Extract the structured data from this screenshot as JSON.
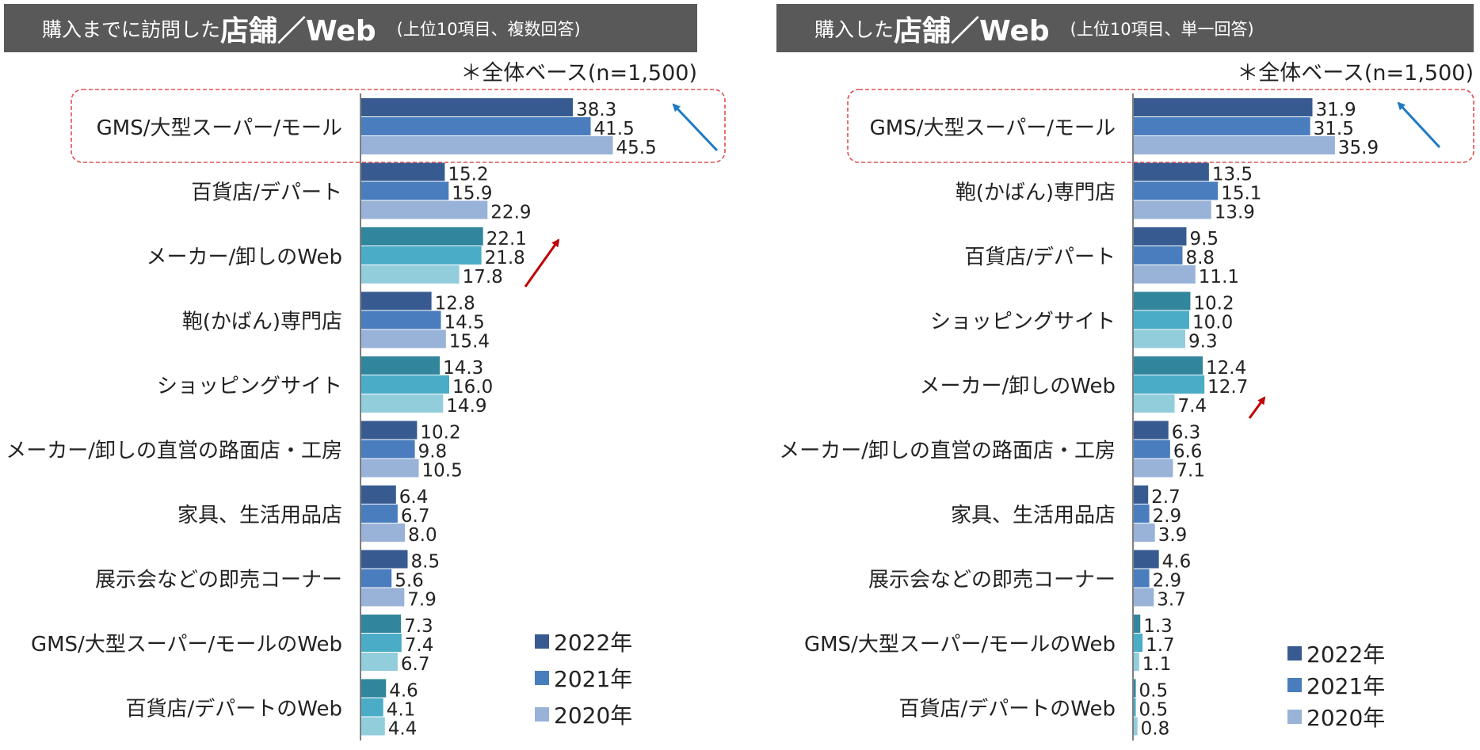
{
  "colors": {
    "title_bg": "#595959",
    "store_2022": "#375b91",
    "store_2021": "#4a7dbd",
    "store_2020": "#98b2d8",
    "web_2022": "#31859c",
    "web_2021": "#4aacc6",
    "web_2020": "#92cddc",
    "highlight_box": "#e05050",
    "arrow_up_left": "#1f7ac4",
    "arrow_up_right": "#c00000"
  },
  "left": {
    "title_pre": "購入までに訪問した",
    "title_em": "店舗／Web",
    "title_note": "(上位10項目、複数回答)",
    "base_note": "＊全体ベース(n=1,500)",
    "legend": [
      "2022年",
      "2021年",
      "2020年"
    ]
  },
  "right": {
    "title_pre": "購入した",
    "title_em": "店舗／Web",
    "title_note": "(上位10項目、単一回答)",
    "base_note": "＊全体ベース(n=1,500)",
    "legend": [
      "2022年",
      "2021年",
      "2020年"
    ]
  },
  "chart_data": [
    {
      "type": "bar",
      "orientation": "horizontal",
      "series_names": [
        "2022年",
        "2021年",
        "2020年"
      ],
      "categories": [
        {
          "label": "GMS/大型スーパー/モール",
          "kind": "store",
          "values": [
            38.3,
            41.5,
            45.5
          ],
          "values_text": [
            "38.3",
            "41.5",
            "45.5"
          ]
        },
        {
          "label": "百貨店/デパート",
          "kind": "store",
          "values": [
            15.2,
            15.9,
            22.9
          ],
          "values_text": [
            "15.2",
            "15.9",
            "22.9"
          ]
        },
        {
          "label": "メーカー/卸しのWeb",
          "kind": "web",
          "values": [
            22.1,
            21.8,
            17.8
          ],
          "values_text": [
            "22.1",
            "21.8",
            "17.8"
          ]
        },
        {
          "label": "鞄(かばん)専門店",
          "kind": "store",
          "values": [
            12.8,
            14.5,
            15.4
          ],
          "values_text": [
            "12.8",
            "14.5",
            "15.4"
          ]
        },
        {
          "label": "ショッピングサイト",
          "kind": "web",
          "values": [
            14.3,
            16.0,
            14.9
          ],
          "values_text": [
            "14.3",
            "16.0",
            "14.9"
          ]
        },
        {
          "label": "メーカー/卸しの直営の路面店・工房",
          "kind": "store",
          "values": [
            10.2,
            9.8,
            10.5
          ],
          "values_text": [
            "10.2",
            "9.8",
            "10.5"
          ]
        },
        {
          "label": "家具、生活用品店",
          "kind": "store",
          "values": [
            6.4,
            6.7,
            8.0
          ],
          "values_text": [
            "6.4",
            "6.7",
            "8.0"
          ]
        },
        {
          "label": "展示会などの即売コーナー",
          "kind": "store",
          "values": [
            8.5,
            5.6,
            7.9
          ],
          "values_text": [
            "8.5",
            "5.6",
            "7.9"
          ]
        },
        {
          "label": "GMS/大型スーパー/モールのWeb",
          "kind": "web",
          "values": [
            7.3,
            7.4,
            6.7
          ],
          "values_text": [
            "7.3",
            "7.4",
            "6.7"
          ]
        },
        {
          "label": "百貨店/デパートのWeb",
          "kind": "web",
          "values": [
            4.6,
            4.1,
            4.4
          ],
          "values_text": [
            "4.6",
            "4.1",
            "4.4"
          ]
        }
      ],
      "highlight_category_index": 0,
      "arrow_up_category_index": 2
    },
    {
      "type": "bar",
      "orientation": "horizontal",
      "series_names": [
        "2022年",
        "2021年",
        "2020年"
      ],
      "categories": [
        {
          "label": "GMS/大型スーパー/モール",
          "kind": "store",
          "values": [
            31.9,
            31.5,
            35.9
          ],
          "values_text": [
            "31.9",
            "31.5",
            "35.9"
          ]
        },
        {
          "label": "鞄(かばん)専門店",
          "kind": "store",
          "values": [
            13.5,
            15.1,
            13.9
          ],
          "values_text": [
            "13.5",
            "15.1",
            "13.9"
          ]
        },
        {
          "label": "百貨店/デパート",
          "kind": "store",
          "values": [
            9.5,
            8.8,
            11.1
          ],
          "values_text": [
            "9.5",
            "8.8",
            "11.1"
          ]
        },
        {
          "label": "ショッピングサイト",
          "kind": "web",
          "values": [
            10.2,
            10.0,
            9.3
          ],
          "values_text": [
            "10.2",
            "10.0",
            "9.3"
          ]
        },
        {
          "label": "メーカー/卸しのWeb",
          "kind": "web",
          "values": [
            12.4,
            12.7,
            7.4
          ],
          "values_text": [
            "12.4",
            "12.7",
            "7.4"
          ]
        },
        {
          "label": "メーカー/卸しの直営の路面店・工房",
          "kind": "store",
          "values": [
            6.3,
            6.6,
            7.1
          ],
          "values_text": [
            "6.3",
            "6.6",
            "7.1"
          ]
        },
        {
          "label": "家具、生活用品店",
          "kind": "store",
          "values": [
            2.7,
            2.9,
            3.9
          ],
          "values_text": [
            "2.7",
            "2.9",
            "3.9"
          ]
        },
        {
          "label": "展示会などの即売コーナー",
          "kind": "store",
          "values": [
            4.6,
            2.9,
            3.7
          ],
          "values_text": [
            "4.6",
            "2.9",
            "3.7"
          ]
        },
        {
          "label": "GMS/大型スーパー/モールのWeb",
          "kind": "web",
          "values": [
            1.3,
            1.7,
            1.1
          ],
          "values_text": [
            "1.3",
            "1.7",
            "1.1"
          ]
        },
        {
          "label": "百貨店/デパートのWeb",
          "kind": "web",
          "values": [
            0.5,
            0.5,
            0.8
          ],
          "values_text": [
            "0.5",
            "0.5",
            "0.8"
          ]
        }
      ],
      "highlight_category_index": 0,
      "arrow_up_category_index": 4
    }
  ]
}
